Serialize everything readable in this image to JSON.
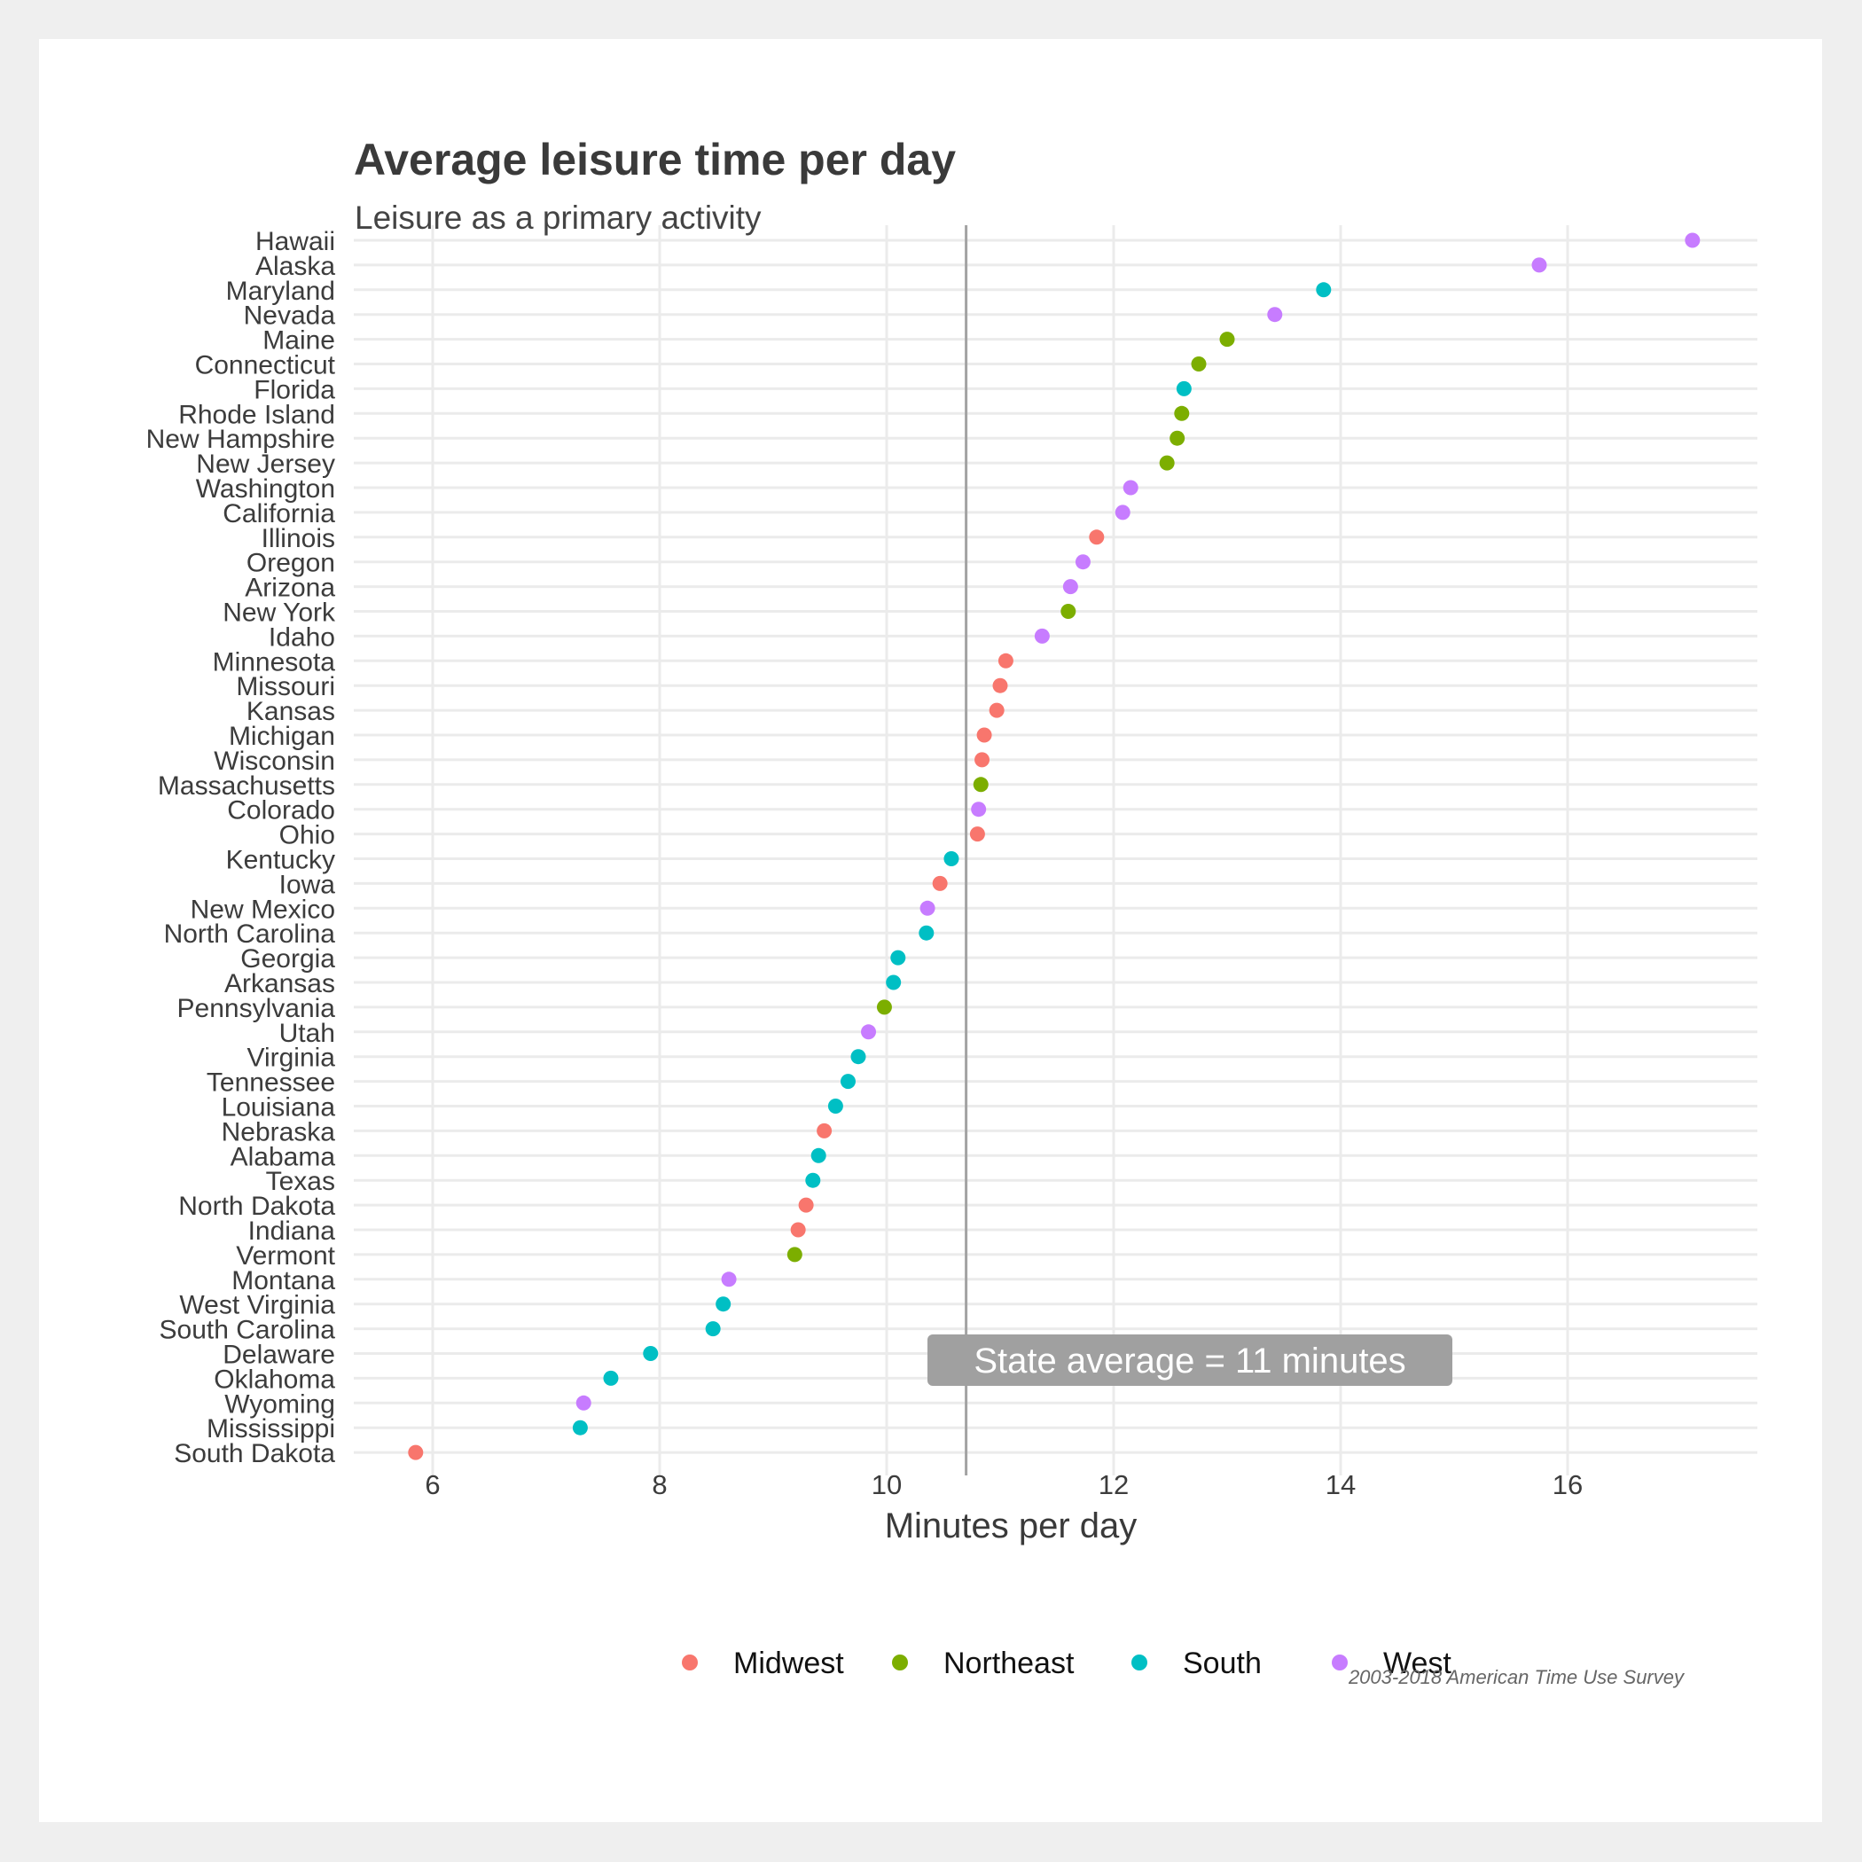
{
  "chart_data": {
    "type": "scatter",
    "title": "Average leisure time per day",
    "subtitle": "Leisure as a primary activity",
    "xlabel": "Minutes per day",
    "ylabel": "",
    "xlim": [
      5.5,
      17.6
    ],
    "xticks": [
      6,
      8,
      10,
      12,
      14,
      16
    ],
    "grid": true,
    "legend_position": "bottom",
    "caption": "2003-2018 American Time Use Survey",
    "reference_line": {
      "value": 10.7,
      "label": "State average = 11 minutes"
    },
    "regions": [
      {
        "name": "Midwest",
        "color": "#F8766D"
      },
      {
        "name": "Northeast",
        "color": "#7CAE00"
      },
      {
        "name": "South",
        "color": "#00BFC4"
      },
      {
        "name": "West",
        "color": "#C77CFF"
      }
    ],
    "points": [
      {
        "state": "Hawaii",
        "x": 17.1,
        "region": "West"
      },
      {
        "state": "Alaska",
        "x": 15.75,
        "region": "West"
      },
      {
        "state": "Maryland",
        "x": 13.85,
        "region": "South"
      },
      {
        "state": "Nevada",
        "x": 13.42,
        "region": "West"
      },
      {
        "state": "Maine",
        "x": 13.0,
        "region": "Northeast"
      },
      {
        "state": "Connecticut",
        "x": 12.75,
        "region": "Northeast"
      },
      {
        "state": "Florida",
        "x": 12.62,
        "region": "South"
      },
      {
        "state": "Rhode Island",
        "x": 12.6,
        "region": "Northeast"
      },
      {
        "state": "New Hampshire",
        "x": 12.56,
        "region": "Northeast"
      },
      {
        "state": "New Jersey",
        "x": 12.47,
        "region": "Northeast"
      },
      {
        "state": "Washington",
        "x": 12.15,
        "region": "West"
      },
      {
        "state": "California",
        "x": 12.08,
        "region": "West"
      },
      {
        "state": "Illinois",
        "x": 11.85,
        "region": "Midwest"
      },
      {
        "state": "Oregon",
        "x": 11.73,
        "region": "West"
      },
      {
        "state": "Arizona",
        "x": 11.62,
        "region": "West"
      },
      {
        "state": "New York",
        "x": 11.6,
        "region": "Northeast"
      },
      {
        "state": "Idaho",
        "x": 11.37,
        "region": "West"
      },
      {
        "state": "Minnesota",
        "x": 11.05,
        "region": "Midwest"
      },
      {
        "state": "Missouri",
        "x": 11.0,
        "region": "Midwest"
      },
      {
        "state": "Kansas",
        "x": 10.97,
        "region": "Midwest"
      },
      {
        "state": "Michigan",
        "x": 10.86,
        "region": "Midwest"
      },
      {
        "state": "Wisconsin",
        "x": 10.84,
        "region": "Midwest"
      },
      {
        "state": "Massachusetts",
        "x": 10.83,
        "region": "Northeast"
      },
      {
        "state": "Colorado",
        "x": 10.81,
        "region": "West"
      },
      {
        "state": "Ohio",
        "x": 10.8,
        "region": "Midwest"
      },
      {
        "state": "Kentucky",
        "x": 10.57,
        "region": "South"
      },
      {
        "state": "Iowa",
        "x": 10.47,
        "region": "Midwest"
      },
      {
        "state": "New Mexico",
        "x": 10.36,
        "region": "West"
      },
      {
        "state": "North Carolina",
        "x": 10.35,
        "region": "South"
      },
      {
        "state": "Georgia",
        "x": 10.1,
        "region": "South"
      },
      {
        "state": "Arkansas",
        "x": 10.06,
        "region": "South"
      },
      {
        "state": "Pennsylvania",
        "x": 9.98,
        "region": "Northeast"
      },
      {
        "state": "Utah",
        "x": 9.84,
        "region": "West"
      },
      {
        "state": "Virginia",
        "x": 9.75,
        "region": "South"
      },
      {
        "state": "Tennessee",
        "x": 9.66,
        "region": "South"
      },
      {
        "state": "Louisiana",
        "x": 9.55,
        "region": "South"
      },
      {
        "state": "Nebraska",
        "x": 9.45,
        "region": "Midwest"
      },
      {
        "state": "Alabama",
        "x": 9.4,
        "region": "South"
      },
      {
        "state": "Texas",
        "x": 9.35,
        "region": "South"
      },
      {
        "state": "North Dakota",
        "x": 9.29,
        "region": "Midwest"
      },
      {
        "state": "Indiana",
        "x": 9.22,
        "region": "Midwest"
      },
      {
        "state": "Vermont",
        "x": 9.19,
        "region": "Northeast"
      },
      {
        "state": "Montana",
        "x": 8.61,
        "region": "West"
      },
      {
        "state": "West Virginia",
        "x": 8.56,
        "region": "South"
      },
      {
        "state": "South Carolina",
        "x": 8.47,
        "region": "South"
      },
      {
        "state": "Delaware",
        "x": 7.92,
        "region": "South"
      },
      {
        "state": "Oklahoma",
        "x": 7.57,
        "region": "South"
      },
      {
        "state": "Wyoming",
        "x": 7.33,
        "region": "West"
      },
      {
        "state": "Mississippi",
        "x": 7.3,
        "region": "South"
      },
      {
        "state": "South Dakota",
        "x": 5.85,
        "region": "Midwest"
      }
    ]
  }
}
